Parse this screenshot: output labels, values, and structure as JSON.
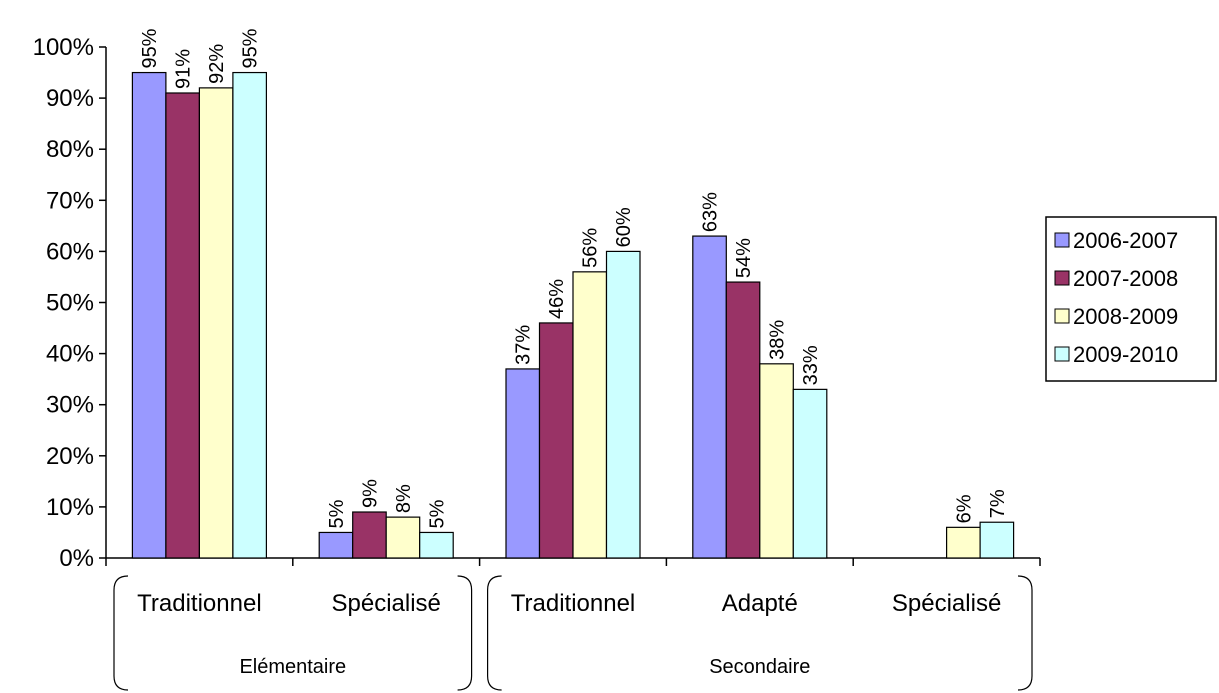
{
  "chart_data": {
    "type": "bar",
    "title": "",
    "xlabel": "",
    "ylabel": "",
    "ylim": [
      0,
      100
    ],
    "y_ticks": [
      "0%",
      "10%",
      "20%",
      "30%",
      "40%",
      "50%",
      "60%",
      "70%",
      "80%",
      "90%",
      "100%"
    ],
    "categories": [
      "Traditionnel",
      "Spécialisé",
      "Traditionnel",
      "Adapté",
      "Spécialisé"
    ],
    "groups": [
      {
        "label": "Elémentaire",
        "categories": [
          0,
          1
        ]
      },
      {
        "label": "Secondaire",
        "categories": [
          2,
          3,
          4
        ]
      }
    ],
    "series": [
      {
        "name": "2006-2007",
        "color": "#9999ff",
        "values": [
          95,
          5,
          37,
          63,
          null
        ],
        "labels": [
          "95%",
          "5%",
          "37%",
          "63%",
          ""
        ]
      },
      {
        "name": "2007-2008",
        "color": "#993366",
        "values": [
          91,
          9,
          46,
          54,
          null
        ],
        "labels": [
          "91%",
          "9%",
          "46%",
          "54%",
          ""
        ]
      },
      {
        "name": "2008-2009",
        "color": "#ffffcc",
        "values": [
          92,
          8,
          56,
          38,
          6
        ],
        "labels": [
          "92%",
          "8%",
          "56%",
          "38%",
          "6%"
        ]
      },
      {
        "name": "2009-2010",
        "color": "#ccffff",
        "values": [
          95,
          5,
          60,
          33,
          7
        ],
        "labels": [
          "95%",
          "5%",
          "60%",
          "33%",
          "7%"
        ]
      }
    ],
    "legend_position": "right",
    "grid": false
  }
}
